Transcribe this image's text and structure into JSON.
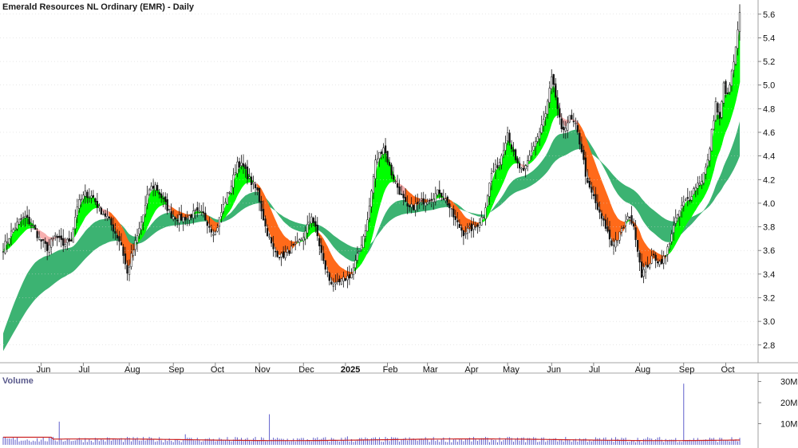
{
  "chart_data": {
    "type": "candlestick",
    "title": "Emerald Resources NL Ordinary (EMR) - Daily",
    "price_axis": {
      "ylim": [
        2.65,
        5.72
      ],
      "ticks": [
        {
          "value": 2.8,
          "label": "2.8"
        },
        {
          "value": 3.0,
          "label": "3.0"
        },
        {
          "value": 3.2,
          "label": "3.2"
        },
        {
          "value": 3.4,
          "label": "3.4"
        },
        {
          "value": 3.6,
          "label": "3.6"
        },
        {
          "value": 3.8,
          "label": "3.8"
        },
        {
          "value": 4.0,
          "label": "4.0"
        },
        {
          "value": 4.2,
          "label": "4.2"
        },
        {
          "value": 4.4,
          "label": "4.4"
        },
        {
          "value": 4.6,
          "label": "4.6"
        },
        {
          "value": 4.8,
          "label": "4.8"
        },
        {
          "value": 5.0,
          "label": "5.0"
        },
        {
          "value": 5.2,
          "label": "5.2"
        },
        {
          "value": 5.4,
          "label": "5.4"
        },
        {
          "value": 5.6,
          "label": "5.6"
        }
      ]
    },
    "x_axis": {
      "labels": [
        {
          "label": "Jun",
          "day": 19,
          "bold": false
        },
        {
          "label": "Jul",
          "day": 40,
          "bold": false
        },
        {
          "label": "Aug",
          "day": 63,
          "bold": false
        },
        {
          "label": "Sep",
          "day": 85,
          "bold": false
        },
        {
          "label": "Oct",
          "day": 106,
          "bold": false
        },
        {
          "label": "Nov",
          "day": 128,
          "bold": false
        },
        {
          "label": "Dec",
          "day": 150,
          "bold": false
        },
        {
          "label": "2025",
          "day": 171,
          "bold": true
        },
        {
          "label": "Feb",
          "day": 192,
          "bold": false
        },
        {
          "label": "Mar",
          "day": 212,
          "bold": false
        },
        {
          "label": "Apr",
          "day": 233,
          "bold": false
        },
        {
          "label": "May",
          "day": 252,
          "bold": false
        },
        {
          "label": "Jun",
          "day": 274,
          "bold": false
        },
        {
          "label": "Jul",
          "day": 295,
          "bold": false
        },
        {
          "label": "Aug",
          "day": 318,
          "bold": false
        },
        {
          "label": "Sep",
          "day": 340,
          "bold": false
        },
        {
          "label": "Oct",
          "day": 361,
          "bold": false
        }
      ]
    },
    "close_anchors": [
      [
        0,
        3.62
      ],
      [
        4,
        3.75
      ],
      [
        8,
        3.85
      ],
      [
        11,
        3.88
      ],
      [
        15,
        3.8
      ],
      [
        18,
        3.7
      ],
      [
        22,
        3.62
      ],
      [
        26,
        3.72
      ],
      [
        30,
        3.65
      ],
      [
        34,
        3.7
      ],
      [
        37,
        3.98
      ],
      [
        41,
        4.08
      ],
      [
        45,
        4.05
      ],
      [
        48,
        3.95
      ],
      [
        52,
        3.88
      ],
      [
        56,
        3.75
      ],
      [
        59,
        3.65
      ],
      [
        62,
        3.4
      ],
      [
        64,
        3.55
      ],
      [
        67,
        3.72
      ],
      [
        70,
        3.9
      ],
      [
        73,
        4.12
      ],
      [
        76,
        4.15
      ],
      [
        80,
        4.02
      ],
      [
        84,
        3.9
      ],
      [
        88,
        3.87
      ],
      [
        92,
        3.88
      ],
      [
        96,
        3.92
      ],
      [
        100,
        3.9
      ],
      [
        104,
        3.78
      ],
      [
        106,
        3.75
      ],
      [
        110,
        3.98
      ],
      [
        114,
        4.15
      ],
      [
        117,
        4.35
      ],
      [
        120,
        4.3
      ],
      [
        123,
        4.2
      ],
      [
        127,
        4.1
      ],
      [
        131,
        3.8
      ],
      [
        135,
        3.6
      ],
      [
        139,
        3.55
      ],
      [
        143,
        3.6
      ],
      [
        147,
        3.65
      ],
      [
        151,
        3.75
      ],
      [
        154,
        3.9
      ],
      [
        157,
        3.72
      ],
      [
        160,
        3.5
      ],
      [
        163,
        3.35
      ],
      [
        166,
        3.3
      ],
      [
        170,
        3.35
      ],
      [
        174,
        3.4
      ],
      [
        178,
        3.6
      ],
      [
        182,
        3.85
      ],
      [
        186,
        4.35
      ],
      [
        190,
        4.48
      ],
      [
        194,
        4.25
      ],
      [
        198,
        4.1
      ],
      [
        202,
        3.95
      ],
      [
        206,
        3.98
      ],
      [
        210,
        4.02
      ],
      [
        214,
        4.05
      ],
      [
        218,
        4.1
      ],
      [
        222,
        4.0
      ],
      [
        226,
        3.85
      ],
      [
        230,
        3.75
      ],
      [
        233,
        3.78
      ],
      [
        236,
        3.8
      ],
      [
        240,
        3.9
      ],
      [
        244,
        4.25
      ],
      [
        248,
        4.35
      ],
      [
        252,
        4.6
      ],
      [
        256,
        4.35
      ],
      [
        260,
        4.25
      ],
      [
        264,
        4.45
      ],
      [
        268,
        4.6
      ],
      [
        271,
        4.75
      ],
      [
        274,
        5.05
      ],
      [
        276,
        4.9
      ],
      [
        279,
        4.6
      ],
      [
        283,
        4.72
      ],
      [
        286,
        4.65
      ],
      [
        289,
        4.45
      ],
      [
        292,
        4.15
      ],
      [
        295,
        4.05
      ],
      [
        298,
        3.9
      ],
      [
        301,
        3.8
      ],
      [
        304,
        3.65
      ],
      [
        307,
        3.7
      ],
      [
        310,
        3.8
      ],
      [
        313,
        3.9
      ],
      [
        316,
        3.72
      ],
      [
        319,
        3.4
      ],
      [
        322,
        3.48
      ],
      [
        325,
        3.55
      ],
      [
        328,
        3.5
      ],
      [
        331,
        3.55
      ],
      [
        334,
        3.75
      ],
      [
        337,
        3.9
      ],
      [
        340,
        4.0
      ],
      [
        343,
        4.05
      ],
      [
        346,
        4.15
      ],
      [
        349,
        4.2
      ],
      [
        352,
        4.35
      ],
      [
        354,
        4.6
      ],
      [
        356,
        4.85
      ],
      [
        358,
        4.7
      ],
      [
        360,
        5.0
      ],
      [
        362,
        4.9
      ],
      [
        364,
        5.1
      ],
      [
        366,
        5.3
      ],
      [
        368,
        5.6
      ]
    ],
    "volume_axis": {
      "ylim": [
        0,
        31
      ],
      "ticks": [
        {
          "value": 10,
          "label": "10M"
        },
        {
          "value": 20,
          "label": "20M"
        },
        {
          "value": 30,
          "label": "30M"
        }
      ],
      "spikes": [
        [
          28,
          11
        ],
        [
          91,
          5
        ],
        [
          133,
          14.5
        ],
        [
          172,
          4
        ],
        [
          340,
          29
        ]
      ]
    },
    "indicator": "GMMA-style short-term and long-term moving average ribbons",
    "colors": {
      "long_band": "#3cb372",
      "short_band_up": "#00ff00",
      "short_band_down": "#ff6a1a",
      "short_band_transition": "#f7b0b0",
      "candle": "#111111",
      "volume_bar": "#6060cc",
      "volume_avg": "#cc2222",
      "grid": "#d0d0d0"
    }
  },
  "labels": {
    "volume_title": "Volume"
  }
}
